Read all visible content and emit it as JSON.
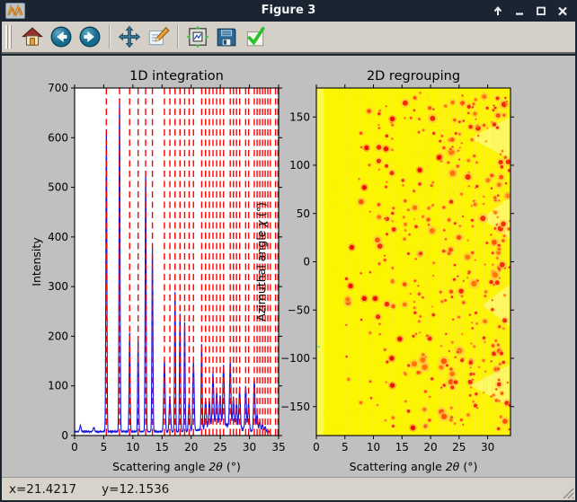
{
  "window": {
    "title": "Figure 3",
    "icon": "matplotlib-logo-icon",
    "controls": [
      {
        "name": "roll-up-button",
        "icon": "arrow-up-icon"
      },
      {
        "name": "minimize-button",
        "icon": "minus-icon"
      },
      {
        "name": "maximize-button",
        "icon": "square-icon"
      },
      {
        "name": "close-button",
        "icon": "x-icon"
      }
    ]
  },
  "toolbar": {
    "buttons": [
      {
        "name": "home-button",
        "icon": "home-icon"
      },
      {
        "name": "back-button",
        "icon": "arrow-left-circle-icon"
      },
      {
        "name": "forward-button",
        "icon": "arrow-right-circle-icon"
      },
      {
        "name": "pan-button",
        "icon": "move-cross-icon"
      },
      {
        "name": "edit-button",
        "icon": "pencil-note-icon"
      },
      {
        "name": "configure-subplots-button",
        "icon": "subplots-arrows-icon"
      },
      {
        "name": "save-button",
        "icon": "floppy-disk-icon"
      },
      {
        "name": "validate-button",
        "icon": "green-check-icon"
      }
    ]
  },
  "statusbar": {
    "x_text": "x=21.4217",
    "y_text": "y=12.1536"
  },
  "colors": {
    "titlebar": "#1b2531",
    "toolbar_bg": "#d4d0c7",
    "canvas_bg": "#c0c0c0",
    "statusbar_bg": "#d7d3ca",
    "curve_blue": "#1212dd",
    "ring_red": "#ff0000",
    "heatmap_yellow": "#fbf600"
  },
  "chart_data": [
    {
      "type": "line",
      "title": "1D integration",
      "xlabel": "Scattering angle 2θ (°)",
      "ylabel": "Intensity",
      "xlim": [
        0,
        35
      ],
      "ylim": [
        0,
        700
      ],
      "xticks": [
        0,
        5,
        10,
        15,
        20,
        25,
        30,
        35
      ],
      "xtick_labels": [
        "0",
        "5",
        "10",
        "15",
        "20",
        "25",
        "30",
        "35"
      ],
      "yticks": [
        0,
        100,
        200,
        300,
        400,
        500,
        600,
        700
      ],
      "ytick_labels": [
        "0",
        "100",
        "200",
        "300",
        "400",
        "500",
        "600",
        "700"
      ],
      "grid": false,
      "line_color": "#1212dd",
      "baseline": 8,
      "data_xmax": 33.5,
      "noise_seed": 11,
      "peaks": [
        [
          1.0,
          12
        ],
        [
          3.3,
          8
        ],
        [
          5.45,
          612
        ],
        [
          7.71,
          672
        ],
        [
          9.44,
          200
        ],
        [
          10.9,
          185
        ],
        [
          12.19,
          522
        ],
        [
          13.35,
          372
        ],
        [
          15.41,
          142
        ],
        [
          16.35,
          72
        ],
        [
          17.23,
          282
        ],
        [
          18.08,
          238
        ],
        [
          18.88,
          222
        ],
        [
          19.65,
          58
        ],
        [
          20.39,
          138
        ],
        [
          21.8,
          172
        ],
        [
          22.47,
          60
        ],
        [
          23.12,
          56
        ],
        [
          23.75,
          105
        ],
        [
          24.37,
          66
        ],
        [
          24.98,
          60
        ],
        [
          25.56,
          120
        ],
        [
          26.7,
          125
        ],
        [
          27.25,
          58
        ],
        [
          27.79,
          48
        ],
        [
          28.32,
          80
        ],
        [
          29.35,
          88
        ],
        [
          29.85,
          55
        ],
        [
          30.83,
          104
        ],
        [
          31.31,
          34
        ],
        [
          31.78,
          20
        ],
        [
          32.24,
          14
        ],
        [
          32.7,
          10
        ]
      ],
      "ring_color": "#ff0000",
      "ring_positions": [
        5.45,
        7.71,
        9.44,
        10.9,
        12.19,
        13.35,
        15.41,
        16.35,
        17.23,
        18.08,
        18.88,
        19.65,
        20.39,
        21.8,
        22.47,
        23.12,
        23.75,
        24.37,
        24.98,
        25.56,
        26.7,
        27.25,
        27.79,
        28.32,
        29.35,
        29.85,
        30.83,
        31.31,
        31.78,
        32.24,
        32.7,
        33.15,
        33.6,
        34.47,
        34.9
      ]
    },
    {
      "type": "heatmap",
      "title": "2D regrouping",
      "xlabel": "Scattering angle 2θ (°)",
      "ylabel": "Azimuthal angle χ (°)",
      "xlim": [
        0,
        34
      ],
      "ylim": [
        -180,
        180
      ],
      "xticks": [
        0,
        5,
        10,
        15,
        20,
        25,
        30
      ],
      "xtick_labels": [
        "0",
        "5",
        "10",
        "15",
        "20",
        "25",
        "30"
      ],
      "yticks": [
        -150,
        -100,
        -50,
        0,
        50,
        100,
        150
      ],
      "ytick_labels": [
        "−150",
        "−100",
        "−50",
        "0",
        "50",
        "100",
        "150"
      ],
      "bg_color": "#fbf600",
      "seed": 42,
      "ring_positions": [
        5.45,
        7.71,
        9.44,
        10.9,
        12.19,
        13.35,
        15.41,
        16.35,
        17.23,
        18.08,
        18.88,
        19.65,
        20.39,
        21.8,
        22.47,
        23.12,
        23.75,
        24.37,
        24.98,
        25.56,
        26.7,
        27.25,
        27.79,
        28.32,
        29.35,
        29.85,
        30.83,
        31.31,
        31.78,
        32.24,
        32.7,
        33.15,
        33.6
      ],
      "hot_spots": [
        [
          8.8,
          118
        ],
        [
          6.0,
          -25
        ],
        [
          10.3,
          -38
        ],
        [
          8.4,
          -38
        ],
        [
          13.3,
          148
        ],
        [
          12.2,
          117
        ],
        [
          14.6,
          -80
        ],
        [
          13.2,
          -100
        ],
        [
          6.2,
          15
        ],
        [
          16.9,
          -172
        ],
        [
          21.5,
          108
        ],
        [
          13.3,
          -128
        ],
        [
          8.4,
          77
        ],
        [
          18.1,
          95
        ]
      ],
      "pale_wedges": [
        [
          27,
          128
        ],
        [
          29,
          45
        ],
        [
          29,
          -45
        ],
        [
          27,
          -128
        ]
      ],
      "cyan_spot": [
        0.4,
        -88
      ]
    }
  ]
}
